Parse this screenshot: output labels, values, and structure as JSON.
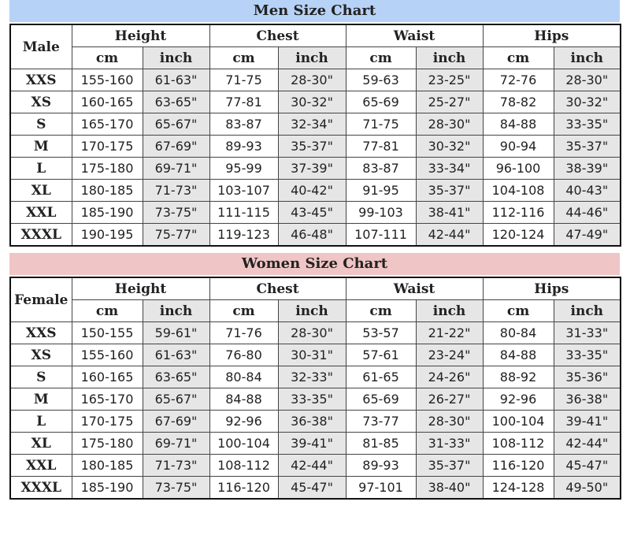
{
  "sections": [
    {
      "title": "Men Size Chart",
      "corner": "Male",
      "groups": [
        "Height",
        "Chest",
        "Waist",
        "Hips"
      ],
      "units": [
        "cm",
        "inch",
        "cm",
        "inch",
        "cm",
        "inch",
        "cm",
        "inch"
      ],
      "rows": [
        [
          "XXS",
          "155-160",
          "61-63\"",
          "71-75",
          "28-30\"",
          "59-63",
          "23-25\"",
          "72-76",
          "28-30\""
        ],
        [
          "XS",
          "160-165",
          "63-65\"",
          "77-81",
          "30-32\"",
          "65-69",
          "25-27\"",
          "78-82",
          "30-32\""
        ],
        [
          "S",
          "165-170",
          "65-67\"",
          "83-87",
          "32-34\"",
          "71-75",
          "28-30\"",
          "84-88",
          "33-35\""
        ],
        [
          "M",
          "170-175",
          "67-69\"",
          "89-93",
          "35-37\"",
          "77-81",
          "30-32\"",
          "90-94",
          "35-37\""
        ],
        [
          "L",
          "175-180",
          "69-71\"",
          "95-99",
          "37-39\"",
          "83-87",
          "33-34\"",
          "96-100",
          "38-39\""
        ],
        [
          "XL",
          "180-185",
          "71-73\"",
          "103-107",
          "40-42\"",
          "91-95",
          "35-37\"",
          "104-108",
          "40-43\""
        ],
        [
          "XXL",
          "185-190",
          "73-75\"",
          "111-115",
          "43-45\"",
          "99-103",
          "38-41\"",
          "112-116",
          "44-46\""
        ],
        [
          "XXXL",
          "190-195",
          "75-77\"",
          "119-123",
          "46-48\"",
          "107-111",
          "42-44\"",
          "120-124",
          "47-49\""
        ]
      ]
    },
    {
      "title": "Women Size Chart",
      "corner": "Female",
      "groups": [
        "Height",
        "Chest",
        "Waist",
        "Hips"
      ],
      "units": [
        "cm",
        "inch",
        "cm",
        "inch",
        "cm",
        "inch",
        "cm",
        "inch"
      ],
      "rows": [
        [
          "XXS",
          "150-155",
          "59-61\"",
          "71-76",
          "28-30\"",
          "53-57",
          "21-22\"",
          "80-84",
          "31-33\""
        ],
        [
          "XS",
          "155-160",
          "61-63\"",
          "76-80",
          "30-31\"",
          "57-61",
          "23-24\"",
          "84-88",
          "33-35\""
        ],
        [
          "S",
          "160-165",
          "63-65\"",
          "80-84",
          "32-33\"",
          "61-65",
          "24-26\"",
          "88-92",
          "35-36\""
        ],
        [
          "M",
          "165-170",
          "65-67\"",
          "84-88",
          "33-35\"",
          "65-69",
          "26-27\"",
          "92-96",
          "36-38\""
        ],
        [
          "L",
          "170-175",
          "67-69\"",
          "92-96",
          "36-38\"",
          "73-77",
          "28-30\"",
          "100-104",
          "39-41\""
        ],
        [
          "XL",
          "175-180",
          "69-71\"",
          "100-104",
          "39-41\"",
          "81-85",
          "31-33\"",
          "108-112",
          "42-44\""
        ],
        [
          "XXL",
          "180-185",
          "71-73\"",
          "108-112",
          "42-44\"",
          "89-93",
          "35-37\"",
          "116-120",
          "45-47\""
        ],
        [
          "XXXL",
          "185-190",
          "73-75\"",
          "116-120",
          "45-47\"",
          "97-101",
          "38-40\"",
          "124-128",
          "49-50\""
        ]
      ]
    }
  ]
}
